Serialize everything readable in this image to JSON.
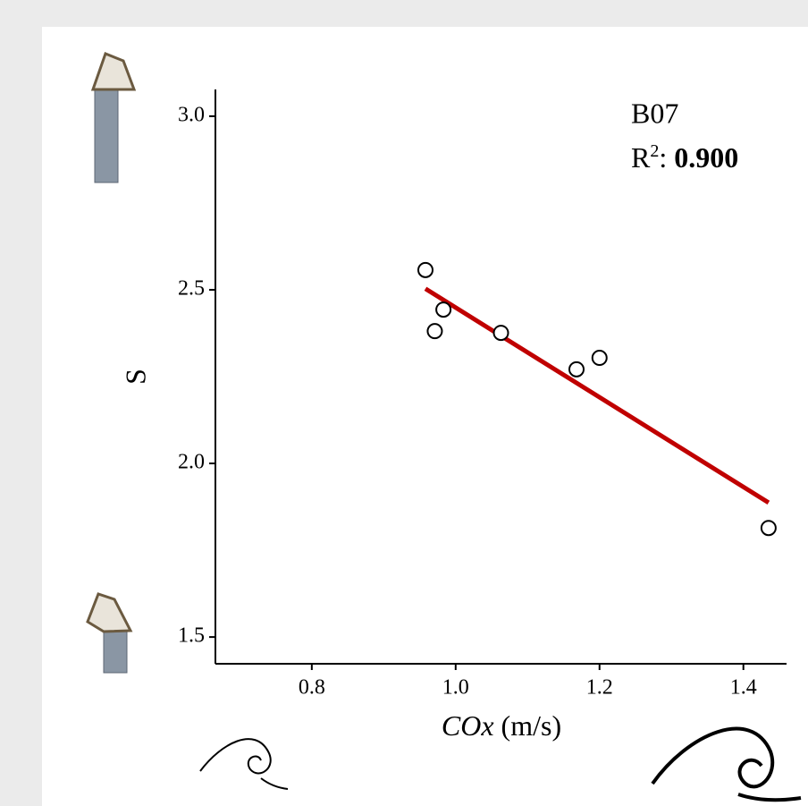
{
  "chart_data": {
    "type": "scatter",
    "annotation": {
      "label": "B07",
      "r2_symbol": "R",
      "r2_sup": "2",
      "r2_sep": ":",
      "r2_value": "0.900"
    },
    "x_label": {
      "italic": "COx",
      "rest": "(m/s)"
    },
    "y_label": "S",
    "x": [
      0.958,
      0.971,
      0.983,
      1.063,
      1.168,
      1.2,
      1.435
    ],
    "values": [
      2.557,
      2.381,
      2.443,
      2.376,
      2.271,
      2.304,
      1.814
    ],
    "marker_color": "#000000",
    "trend": {
      "x": [
        0.958,
        1.435
      ],
      "values": [
        2.503,
        1.887
      ],
      "color": "#c00000"
    },
    "xlim": [
      0.666,
      1.46
    ],
    "ylim": [
      1.423,
      3.077
    ],
    "xticks": [
      0.8,
      {
        "value": 1.0,
        "label": "1.0"
      },
      1.2,
      1.4
    ],
    "yticks": [
      {
        "value": 1.5,
        "label": "1.5"
      },
      {
        "value": 2.0,
        "label": "2.0"
      },
      2.5,
      {
        "value": 3.0,
        "label": "3.0"
      }
    ],
    "grid": false
  }
}
